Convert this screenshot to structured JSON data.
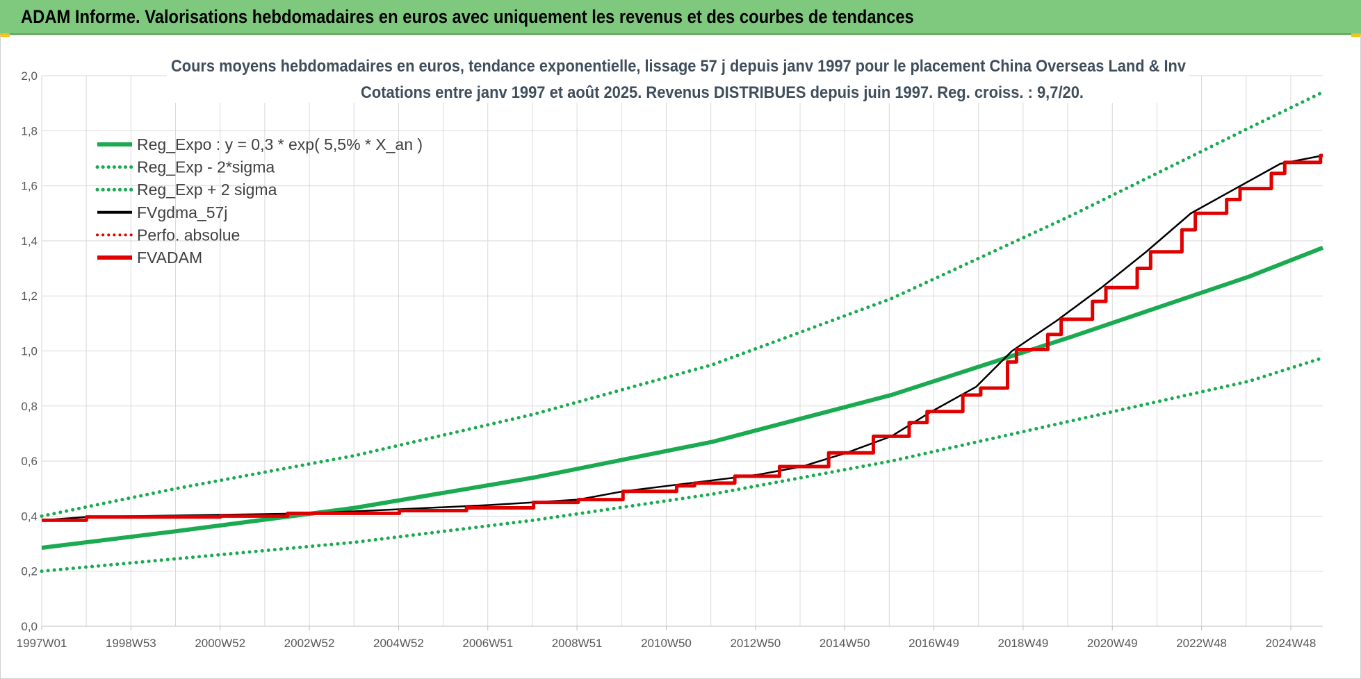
{
  "header": {
    "title": "ADAM Informe. Valorisations hebdomadaires en euros avec uniquement les revenus et des courbes de tendances"
  },
  "colors": {
    "header_bg": "#7fc97f",
    "trend_green": "#1aaa50",
    "fvgdma_black": "#000000",
    "fvadam_red": "#e00000",
    "grid": "#d9d9d9"
  },
  "chart_data": {
    "type": "line",
    "title_line1": "Cours moyens hebdomadaires en euros, tendance exponentielle, lissage 57 j depuis janv 1997 pour le placement China Overseas Land & Inv",
    "title_line2": "Cotations entre janv 1997 et août 2025. Revenus DISTRIBUES depuis juin 1997. Reg. croiss. : 9,7/20.",
    "x_tick_labels": [
      "1997W01",
      "1998W53",
      "2000W52",
      "2002W52",
      "2004W52",
      "2006W51",
      "2008W51",
      "2010W50",
      "2012W50",
      "2014W50",
      "2016W49",
      "2018W49",
      "2020W49",
      "2022W48",
      "2024W48"
    ],
    "x_range_years": [
      1997.0,
      2025.65
    ],
    "y_tick_labels": [
      "0,0",
      "0,2",
      "0,4",
      "0,6",
      "0,8",
      "1,0",
      "1,2",
      "1,4",
      "1,6",
      "1,8",
      "2,0"
    ],
    "ylim": [
      0,
      2.0
    ],
    "grid": true,
    "legend_position": "top-left",
    "legend": [
      "Reg_Expo : y = 0,3 * exp( 5,5% *  X_an )",
      "Reg_Exp - 2*sigma",
      "Reg_Exp + 2 sigma",
      "FVgdma_57j",
      "Perfo. absolue",
      "FVADAM"
    ],
    "series": [
      {
        "name": "Reg_Expo : y = 0,3 * exp( 5,5% *  X_an )",
        "style": "solid",
        "color": "#1aaa50",
        "points": [
          [
            1997.0,
            0.285
          ],
          [
            2000.0,
            0.345
          ],
          [
            2004.0,
            0.43
          ],
          [
            2008.0,
            0.54
          ],
          [
            2012.0,
            0.67
          ],
          [
            2016.0,
            0.84
          ],
          [
            2020.0,
            1.05
          ],
          [
            2024.0,
            1.27
          ],
          [
            2025.65,
            1.375
          ]
        ]
      },
      {
        "name": "Reg_Exp - 2*sigma",
        "style": "dotted",
        "color": "#1aaa50",
        "points": [
          [
            1997.0,
            0.2
          ],
          [
            2000.0,
            0.245
          ],
          [
            2004.0,
            0.305
          ],
          [
            2008.0,
            0.385
          ],
          [
            2012.0,
            0.48
          ],
          [
            2016.0,
            0.6
          ],
          [
            2020.0,
            0.745
          ],
          [
            2024.0,
            0.89
          ],
          [
            2025.65,
            0.975
          ]
        ]
      },
      {
        "name": "Reg_Exp + 2 sigma",
        "style": "dotted",
        "color": "#1aaa50",
        "points": [
          [
            1997.0,
            0.4
          ],
          [
            2000.0,
            0.5
          ],
          [
            2004.0,
            0.62
          ],
          [
            2008.0,
            0.77
          ],
          [
            2012.0,
            0.95
          ],
          [
            2016.0,
            1.19
          ],
          [
            2020.0,
            1.49
          ],
          [
            2024.0,
            1.81
          ],
          [
            2025.65,
            1.94
          ]
        ]
      },
      {
        "name": "FVgdma_57j",
        "style": "solid",
        "color": "#000000",
        "points": [
          [
            1997.0,
            0.385
          ],
          [
            1998.0,
            0.397
          ],
          [
            2003.0,
            0.41
          ],
          [
            2007.0,
            0.44
          ],
          [
            2009.0,
            0.46
          ],
          [
            2010.0,
            0.49
          ],
          [
            2011.5,
            0.52
          ],
          [
            2013.0,
            0.55
          ],
          [
            2014.0,
            0.58
          ],
          [
            2015.0,
            0.63
          ],
          [
            2016.0,
            0.69
          ],
          [
            2016.9,
            0.78
          ],
          [
            2017.9,
            0.87
          ],
          [
            2018.7,
            1.0
          ],
          [
            2019.7,
            1.11
          ],
          [
            2020.7,
            1.23
          ],
          [
            2021.7,
            1.36
          ],
          [
            2022.7,
            1.5
          ],
          [
            2023.7,
            1.59
          ],
          [
            2024.7,
            1.68
          ],
          [
            2025.65,
            1.71
          ]
        ]
      },
      {
        "name": "Perfo. absolue",
        "style": "dotted",
        "color": "#e00000",
        "points": []
      },
      {
        "name": "FVADAM",
        "style": "step",
        "color": "#e00000",
        "points": [
          [
            1997.0,
            0.385
          ],
          [
            1998.0,
            0.397
          ],
          [
            2001.0,
            0.4
          ],
          [
            2002.5,
            0.41
          ],
          [
            2005.0,
            0.42
          ],
          [
            2006.5,
            0.43
          ],
          [
            2008.0,
            0.45
          ],
          [
            2009.0,
            0.46
          ],
          [
            2010.0,
            0.49
          ],
          [
            2011.2,
            0.51
          ],
          [
            2011.6,
            0.52
          ],
          [
            2012.5,
            0.545
          ],
          [
            2013.5,
            0.58
          ],
          [
            2014.6,
            0.63
          ],
          [
            2015.6,
            0.69
          ],
          [
            2016.4,
            0.74
          ],
          [
            2016.8,
            0.78
          ],
          [
            2017.6,
            0.84
          ],
          [
            2018.0,
            0.865
          ],
          [
            2018.6,
            0.96
          ],
          [
            2018.8,
            1.005
          ],
          [
            2019.5,
            1.06
          ],
          [
            2019.8,
            1.115
          ],
          [
            2020.5,
            1.18
          ],
          [
            2020.8,
            1.23
          ],
          [
            2021.5,
            1.3
          ],
          [
            2021.8,
            1.36
          ],
          [
            2022.5,
            1.44
          ],
          [
            2022.8,
            1.5
          ],
          [
            2023.5,
            1.55
          ],
          [
            2023.8,
            1.59
          ],
          [
            2024.5,
            1.645
          ],
          [
            2024.8,
            1.685
          ],
          [
            2025.6,
            1.71
          ],
          [
            2025.65,
            1.71
          ]
        ]
      }
    ]
  }
}
